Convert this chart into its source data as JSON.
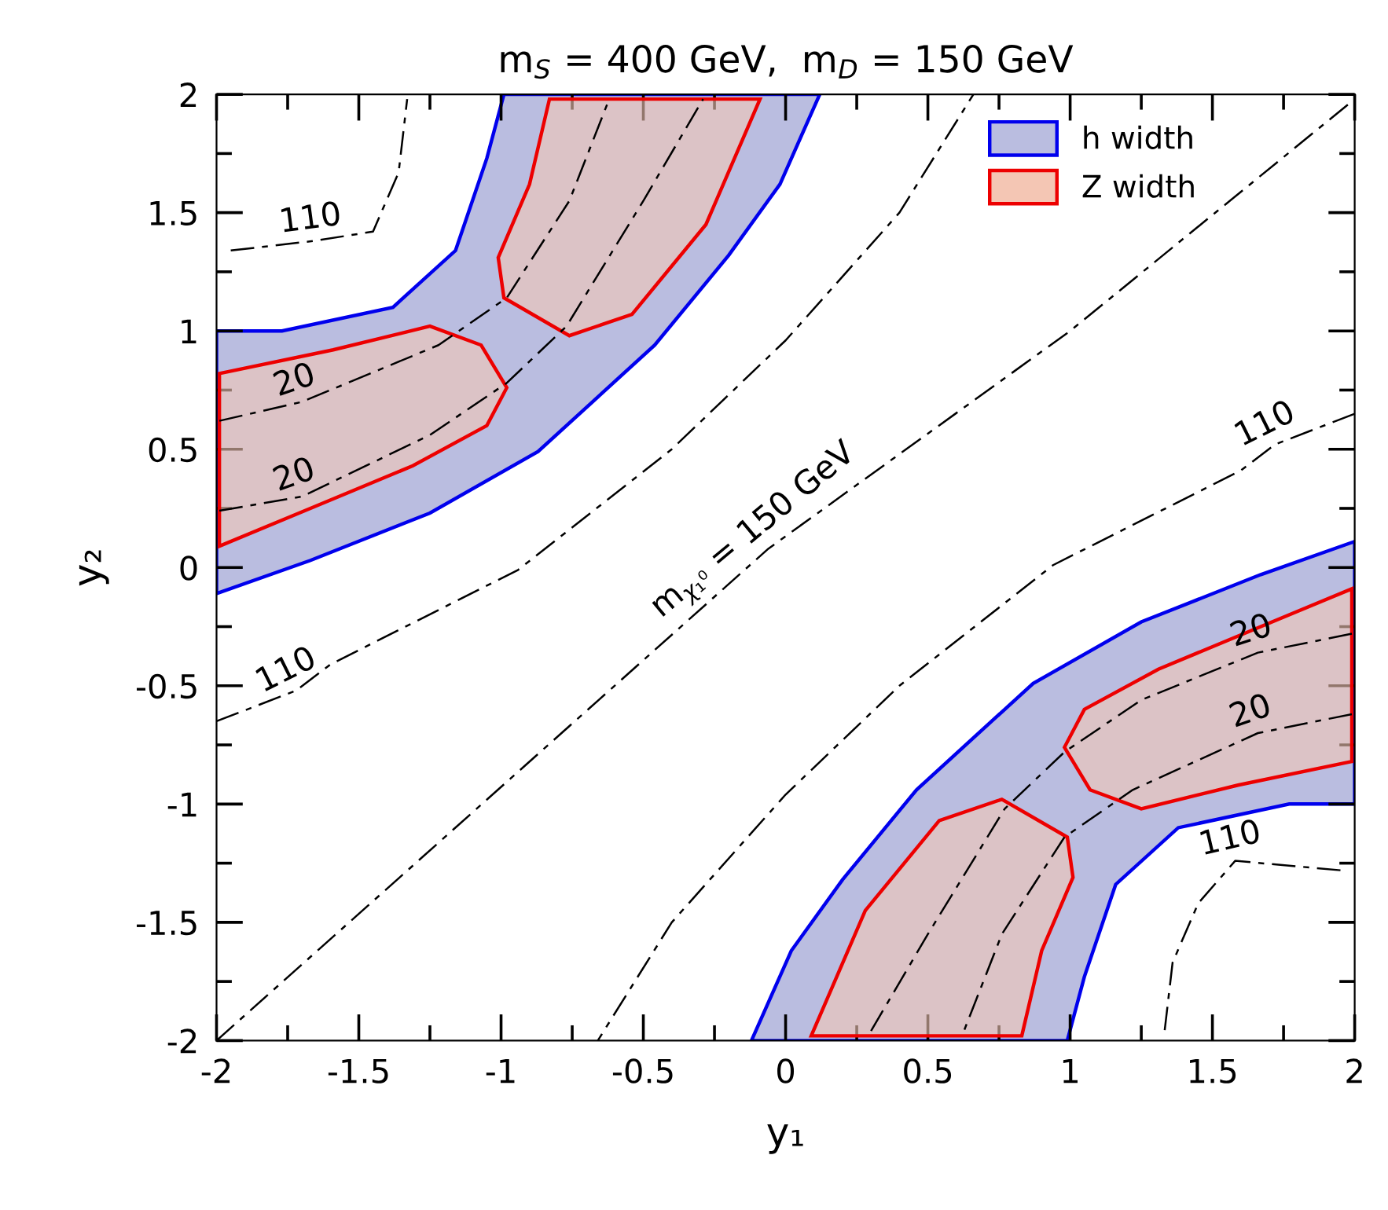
{
  "chart_data": {
    "type": "area",
    "title": "m$_{S}$ = 400 GeV,  m$_{D}$ = 150 GeV",
    "xlabel": "y₁",
    "ylabel": "y₂",
    "xlim": [
      -2,
      2
    ],
    "ylim": [
      -2,
      2
    ],
    "xticks": [
      -2,
      -1.5,
      -1,
      -0.5,
      0,
      0.5,
      1,
      1.5,
      2
    ],
    "yticks": [
      -2,
      -1.5,
      -1,
      -0.5,
      0,
      0.5,
      1,
      1.5,
      2
    ],
    "grid": false,
    "legend": "top right",
    "series": [
      {
        "name": "h width",
        "color": "#babde0",
        "x": [
          -2,
          -1.77,
          -1.38,
          -1.16,
          -1.05,
          -0.99,
          0.12,
          -0.02,
          -0.2,
          -0.46,
          -0.87,
          -1.25,
          -1.67,
          -2,
          null,
          2,
          1.77,
          1.38,
          1.16,
          1.05,
          0.99,
          -0.12,
          0.02,
          0.2,
          0.46,
          0.87,
          1.25,
          1.67,
          2
        ],
        "values": [
          1.0,
          1.0,
          1.1,
          1.34,
          1.73,
          2,
          2,
          1.62,
          1.32,
          0.94,
          0.49,
          0.23,
          0.03,
          -0.11,
          null,
          -1.0,
          -1.0,
          -1.1,
          -1.34,
          -1.73,
          -2,
          -2,
          -1.62,
          -1.32,
          -0.94,
          -0.49,
          -0.23,
          -0.03,
          0.11
        ]
      },
      {
        "name": "Z width",
        "color": "#f4c6b4",
        "x": [
          -1.99,
          -1.59,
          -1.25,
          -1.07,
          -0.98,
          -1.05,
          -1.31,
          -1.67,
          -1.99,
          null,
          -0.83,
          -0.9,
          -1.01,
          -0.99,
          -0.76,
          -0.54,
          -0.28,
          -0.09,
          null,
          1.99,
          1.59,
          1.25,
          1.07,
          0.98,
          1.05,
          1.31,
          1.67,
          1.99,
          null,
          0.83,
          0.9,
          1.01,
          0.99,
          0.76,
          0.54,
          0.28,
          0.09
        ],
        "values": [
          0.82,
          0.92,
          1.02,
          0.94,
          0.76,
          0.6,
          0.43,
          0.25,
          0.09,
          null,
          1.98,
          1.62,
          1.31,
          1.14,
          0.98,
          1.07,
          1.45,
          1.98,
          null,
          -0.82,
          -0.92,
          -1.02,
          -0.94,
          -0.76,
          -0.6,
          -0.43,
          -0.25,
          -0.09,
          null,
          -1.98,
          -1.62,
          -1.31,
          -1.14,
          -0.98,
          -1.07,
          -1.45,
          -1.98
        ]
      },
      {
        "type": "line",
        "color": "#000000",
        "line_style": "dashed",
        "x": [
          -2,
          -0.06,
          1,
          2
        ],
        "values": [
          -2,
          0.08,
          1.0,
          1.98
        ]
      },
      {
        "type": "line",
        "color": "#000000",
        "line_style": "dashed",
        "x": [
          -2,
          -1.72,
          -1.6,
          -0.94,
          -0.4,
          0,
          0.4,
          0.66
        ],
        "values": [
          -0.65,
          -0.52,
          -0.41,
          -0.01,
          0.5,
          0.96,
          1.5,
          2
        ]
      },
      {
        "type": "line",
        "color": "#000000",
        "line_style": "dashed",
        "x": [
          2,
          1.72,
          1.6,
          0.94,
          0.4,
          0,
          -0.4,
          -0.66
        ],
        "values": [
          0.65,
          0.52,
          0.41,
          0.01,
          -0.5,
          -0.96,
          -1.5,
          -2
        ]
      },
      {
        "type": "line",
        "color": "#000000",
        "line_style": "dashed",
        "x": [
          -1.99,
          -1.7,
          -1.22,
          -0.98,
          -0.76,
          -0.62
        ],
        "values": [
          0.62,
          0.7,
          0.94,
          1.14,
          1.55,
          1.98
        ]
      },
      {
        "type": "line",
        "color": "#000000",
        "line_style": "dashed",
        "x": [
          -1.99,
          -1.7,
          -1.25,
          -0.98,
          -0.77,
          -0.5,
          -0.29
        ],
        "values": [
          0.24,
          0.3,
          0.56,
          0.78,
          1.02,
          1.55,
          1.98
        ]
      },
      {
        "type": "line",
        "color": "#000000",
        "line_style": "dashed",
        "x": [
          1.99,
          1.66,
          1.22,
          0.98,
          0.76,
          0.62
        ],
        "values": [
          -0.62,
          -0.7,
          -0.94,
          -1.14,
          -1.55,
          -1.98
        ]
      },
      {
        "type": "line",
        "color": "#000000",
        "line_style": "dashed",
        "x": [
          1.99,
          1.66,
          1.25,
          0.98,
          0.77,
          0.5,
          0.29
        ],
        "values": [
          -0.28,
          -0.36,
          -0.56,
          -0.78,
          -1.02,
          -1.55,
          -1.98
        ]
      },
      {
        "type": "line",
        "color": "#000000",
        "line_style": "dashed",
        "x": [
          -1.95,
          -1.66,
          -1.45,
          -1.36,
          -1.33
        ],
        "values": [
          1.34,
          1.38,
          1.42,
          1.67,
          1.98
        ]
      },
      {
        "type": "line",
        "color": "#000000",
        "line_style": "dashed",
        "x": [
          1.95,
          1.58,
          1.45,
          1.36,
          1.33
        ],
        "values": [
          -1.28,
          -1.24,
          -1.42,
          -1.67,
          -1.98
        ]
      }
    ],
    "annotations": [
      "m$_{χ₁⁰}$ = 150 GeV",
      "110",
      "110",
      "20",
      "20",
      "20",
      "20",
      "110",
      "110"
    ]
  }
}
